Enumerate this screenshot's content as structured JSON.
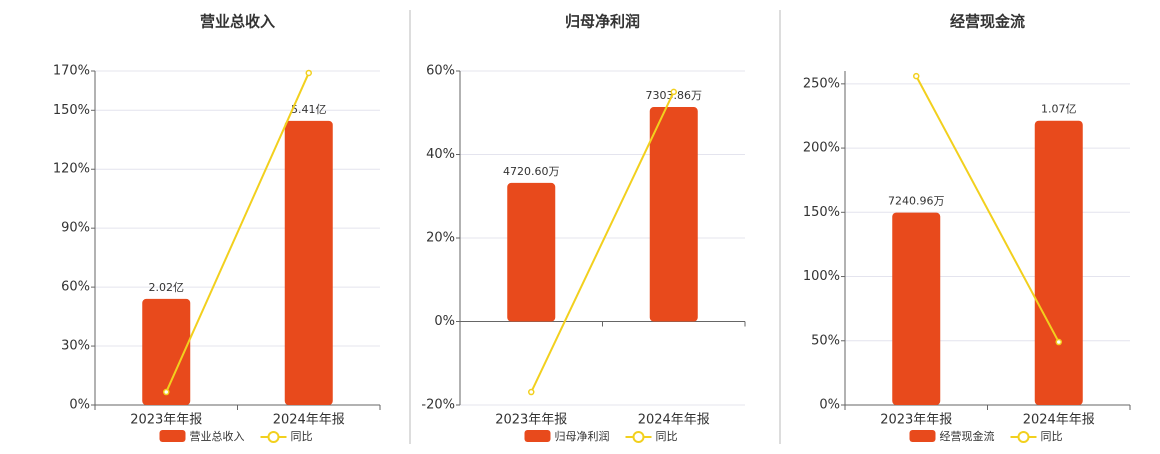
{
  "chart_data": [
    {
      "type": "bar-line",
      "title": "营业总收入",
      "categories": [
        "2023年年报",
        "2024年年报"
      ],
      "series": [
        {
          "name": "营业总收入",
          "type": "bar",
          "axis": "y2",
          "color": "#e84a1c",
          "values": [
            202000000,
            541000000
          ],
          "value_labels": [
            "2.02亿",
            "5.41亿"
          ]
        },
        {
          "name": "同比",
          "type": "line",
          "color": "#f2d01e",
          "values": [
            6.6,
            169
          ]
        }
      ],
      "ylim": [
        0,
        170
      ],
      "yticks": [
        {
          "value": 0,
          "label": "0%"
        },
        {
          "value": 30,
          "label": "30%"
        },
        {
          "value": 60,
          "label": "60%"
        },
        {
          "value": 90,
          "label": "90%"
        },
        {
          "value": 120,
          "label": "120%"
        },
        {
          "value": 150,
          "label": "150%"
        },
        {
          "value": 170,
          "label": "170%"
        }
      ],
      "y2lim": [
        0,
        636000000
      ],
      "grid": true
    },
    {
      "type": "bar-line",
      "title": "归母净利润",
      "categories": [
        "2023年年报",
        "2024年年报"
      ],
      "series": [
        {
          "name": "归母净利润",
          "type": "bar",
          "axis": "y2",
          "color": "#e84a1c",
          "values": [
            47206000,
            73038600
          ],
          "value_labels": [
            "4720.60万",
            "7303.86万"
          ]
        },
        {
          "name": "同比",
          "type": "line",
          "color": "#f2d01e",
          "values": [
            -16.9,
            55
          ]
        }
      ],
      "ylim": [
        -20,
        60
      ],
      "yticks": [
        {
          "value": -20,
          "label": "-20%"
        },
        {
          "value": 0,
          "label": "0%"
        },
        {
          "value": 20,
          "label": "20%"
        },
        {
          "value": 40,
          "label": "40%"
        },
        {
          "value": 60,
          "label": "60%"
        }
      ],
      "y2lim": [
        -28440000,
        85320000
      ],
      "grid": true
    },
    {
      "type": "bar-line",
      "title": "经营现金流",
      "categories": [
        "2023年年报",
        "2024年年报"
      ],
      "series": [
        {
          "name": "经营现金流",
          "type": "bar",
          "axis": "y2",
          "color": "#e84a1c",
          "values": [
            72409600,
            107000000
          ],
          "value_labels": [
            "7240.96万",
            "1.07亿"
          ]
        },
        {
          "name": "同比",
          "type": "line",
          "color": "#f2d01e",
          "values": [
            256,
            49
          ]
        }
      ],
      "ylim": [
        0,
        260
      ],
      "yticks": [
        {
          "value": 0,
          "label": "0%"
        },
        {
          "value": 50,
          "label": "50%"
        },
        {
          "value": 100,
          "label": "100%"
        },
        {
          "value": 150,
          "label": "150%"
        },
        {
          "value": 200,
          "label": "200%"
        },
        {
          "value": 250,
          "label": "250%"
        }
      ],
      "y2lim": [
        0,
        125700000
      ],
      "grid": true
    }
  ]
}
